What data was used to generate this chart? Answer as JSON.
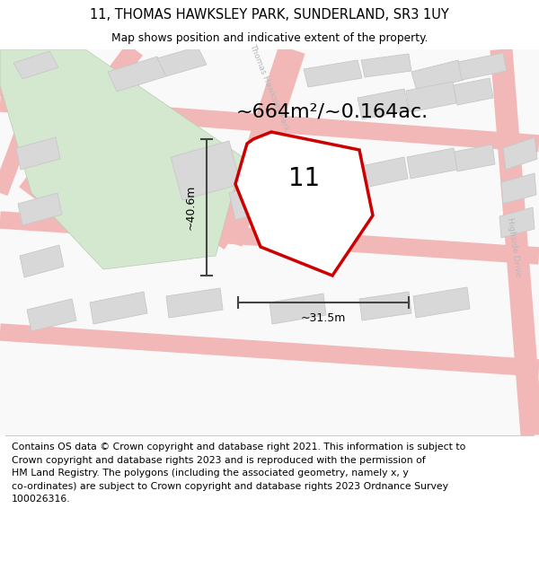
{
  "title": "11, THOMAS HAWKSLEY PARK, SUNDERLAND, SR3 1UY",
  "subtitle": "Map shows position and indicative extent of the property.",
  "area_text": "~664m²/~0.164ac.",
  "width_text": "~31.5m",
  "height_text": "~40.6m",
  "house_number": "11",
  "footer_lines": [
    "Contains OS data © Crown copyright and database right 2021. This information is subject to Crown copyright and database rights 2023 and is reproduced with the permission of",
    "HM Land Registry. The polygons (including the associated geometry, namely x, y co-ordinates) are subject to Crown copyright and database rights 2023 Ordnance Survey",
    "100026316."
  ],
  "map_bg": "#f9f9f9",
  "road_color": "#f2b8b8",
  "building_color": "#d8d8d8",
  "building_outline": "#c8c8c8",
  "green_color": "#d4e8d0",
  "property_fill": "#ffffff",
  "property_outline": "#cc0000",
  "dim_color": "#444444",
  "street_color": "#b8b8b8",
  "title_fontsize": 10.5,
  "subtitle_fontsize": 8.8,
  "area_fontsize": 16,
  "label_fontsize": 9,
  "number_fontsize": 20,
  "street_fontsize": 6.5,
  "footer_fontsize": 7.8
}
